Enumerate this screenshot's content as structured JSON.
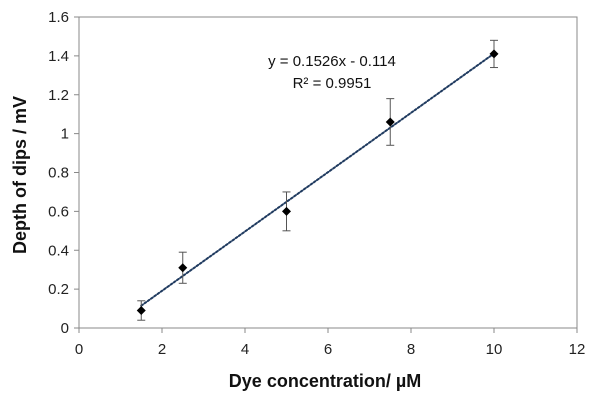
{
  "chart_data": {
    "type": "scatter",
    "xlabel": "Dye concentration/ µM",
    "ylabel": "Depth of dips / mV",
    "xlim": [
      0,
      12
    ],
    "ylim": [
      0,
      1.6
    ],
    "x_ticks": [
      0,
      2,
      4,
      6,
      8,
      10,
      12
    ],
    "y_ticks": [
      0,
      0.2,
      0.4,
      0.6,
      0.8,
      1,
      1.2,
      1.4,
      1.6
    ],
    "x_tick_labels": [
      "0",
      "2",
      "4",
      "6",
      "8",
      "10",
      "12"
    ],
    "y_tick_labels": [
      "0",
      "0.2",
      "0.4",
      "0.6",
      "0.8",
      "1",
      "1.2",
      "1.4",
      "1.6"
    ],
    "grid": false,
    "series": [
      {
        "x": [
          1.5,
          2.5,
          5,
          7.5,
          10
        ],
        "y": [
          0.09,
          0.31,
          0.6,
          1.06,
          1.41
        ],
        "error": [
          0.05,
          0.08,
          0.1,
          0.12,
          0.07
        ],
        "marker": "diamond",
        "color": "#000000"
      }
    ],
    "trendline": {
      "type": "linear",
      "slope": 0.1526,
      "intercept": -0.114,
      "x_range": [
        1.5,
        10
      ],
      "style": "dotted",
      "color": "#1f3a5f",
      "equation_label": "y = 0.1526x - 0.114",
      "r2_label": "R² = 0.9951"
    }
  }
}
